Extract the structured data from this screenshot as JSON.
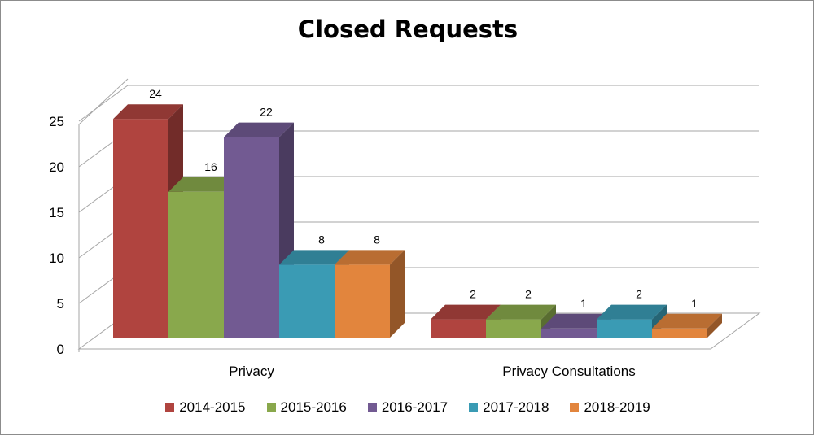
{
  "chart_data": {
    "type": "bar",
    "title": "Closed Requests",
    "categories": [
      "Privacy",
      "Privacy Consultations"
    ],
    "series": [
      {
        "name": "2014-2015",
        "values": [
          24,
          2
        ],
        "color": "#b0443f"
      },
      {
        "name": "2015-2016",
        "values": [
          16,
          2
        ],
        "color": "#89a84c"
      },
      {
        "name": "2016-2017",
        "values": [
          22,
          1
        ],
        "color": "#725a92"
      },
      {
        "name": "2017-2018",
        "values": [
          8,
          2
        ],
        "color": "#3a9bb4"
      },
      {
        "name": "2018-2019",
        "values": [
          8,
          1
        ],
        "color": "#e2853d"
      }
    ],
    "yticks": [
      0,
      5,
      10,
      15,
      20,
      25
    ],
    "ylim": [
      0,
      25
    ],
    "grid": true,
    "legend_position": "bottom",
    "style": "3d-clustered-column",
    "data_labels": true
  }
}
